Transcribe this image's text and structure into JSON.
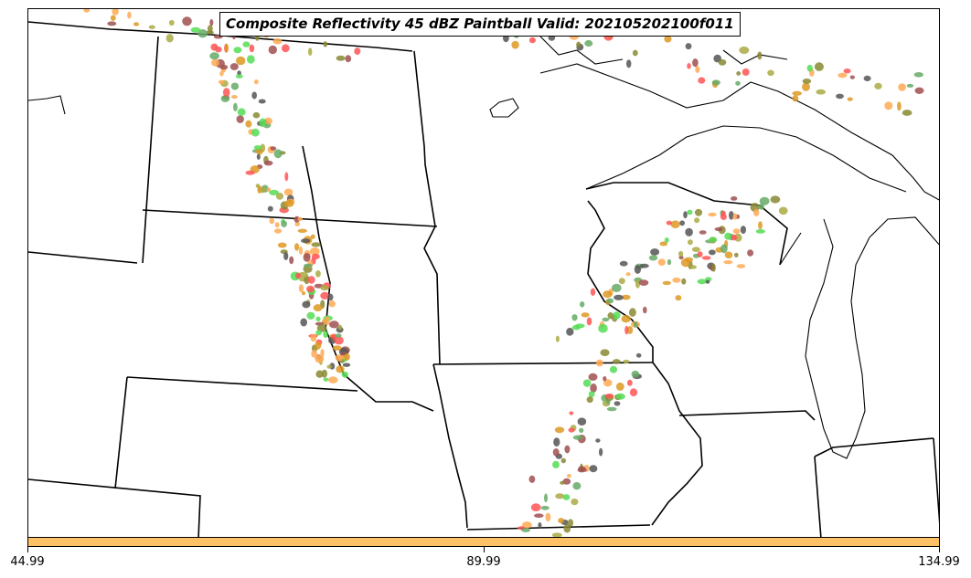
{
  "title": "Composite Reflectivity 45 dBZ Paintball Valid: 202105202100f011",
  "colorbar": {
    "color": "#ffc166",
    "tick_labels": [
      "44.99",
      "89.99",
      "134.99"
    ]
  },
  "member_colors": [
    "#55dd55",
    "#ff5555",
    "#a05050",
    "#555555",
    "#aaaa44",
    "#ffaa55",
    "#dd9922",
    "#66aa66",
    "#888833"
  ],
  "region": "Upper Midwest / Great Plains"
}
